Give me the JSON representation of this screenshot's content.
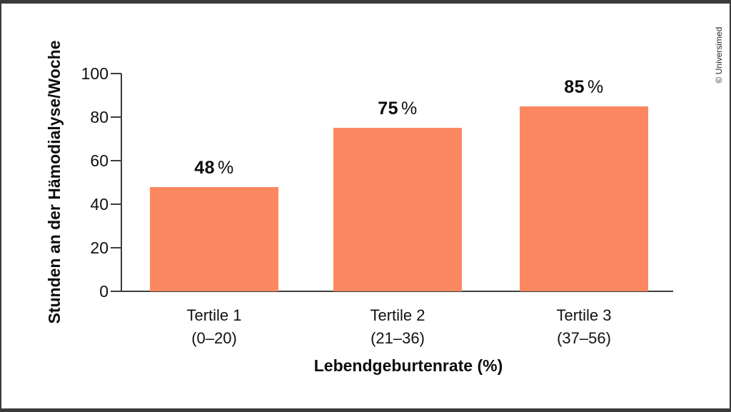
{
  "credit": "© Universimed",
  "chart_data": {
    "type": "bar",
    "title": "",
    "categories": [
      "Tertile 1",
      "Tertile 2",
      "Tertile 3"
    ],
    "category_sublabels": [
      "(0–20)",
      "(21–36)",
      "(37–56)"
    ],
    "values": [
      48,
      75,
      85
    ],
    "value_suffix": "%",
    "xlabel": "Lebendgeburtenrate (%)",
    "ylabel": "Stunden an der Hämodialyse/Woche",
    "ylim": [
      0,
      100
    ],
    "yticks": [
      0,
      20,
      40,
      60,
      80,
      100
    ],
    "bar_color": "#fc8862",
    "axis_color": "#3d3d3d",
    "grid": false,
    "legend": false
  }
}
